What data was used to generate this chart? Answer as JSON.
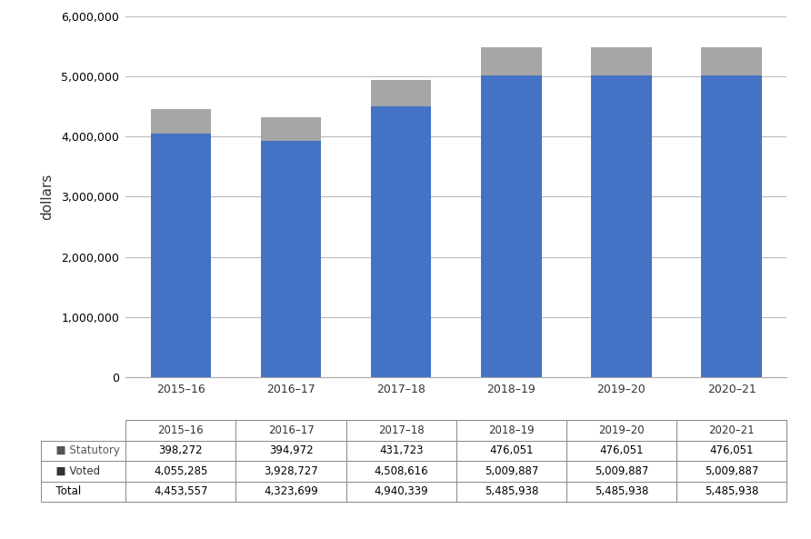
{
  "categories": [
    "2015–16",
    "2016–17",
    "2017–18",
    "2018–19",
    "2019–20",
    "2020–21"
  ],
  "voted": [
    4055285,
    3928727,
    4508616,
    5009887,
    5009887,
    5009887
  ],
  "statutory": [
    398272,
    394972,
    431723,
    476051,
    476051,
    476051
  ],
  "voted_color": "#4472C4",
  "statutory_color": "#A6A6A6",
  "ylabel": "dollars",
  "ylim": [
    0,
    6000000
  ],
  "yticks": [
    0,
    1000000,
    2000000,
    3000000,
    4000000,
    5000000,
    6000000
  ],
  "table_rows": {
    "Statutory": [
      398272,
      394972,
      431723,
      476051,
      476051,
      476051
    ],
    "Voted": [
      4055285,
      3928727,
      4508616,
      5009887,
      5009887,
      5009887
    ],
    "Total": [
      4453557,
      4323699,
      4940339,
      5485938,
      5485938,
      5485938
    ]
  },
  "background_color": "#FFFFFF",
  "grid_color": "#BBBBBB",
  "bar_width": 0.55,
  "row_labels": [
    "Statutory",
    "Voted",
    "Total"
  ],
  "legend_colors": [
    "#A6A6A6",
    "#4472C4",
    null
  ]
}
